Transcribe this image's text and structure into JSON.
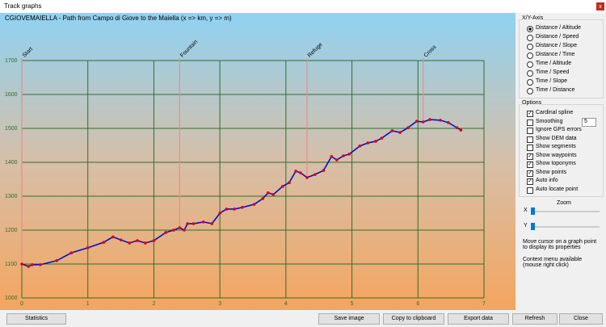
{
  "window": {
    "title": "Track graphs",
    "close": "x"
  },
  "chart": {
    "type": "line",
    "title": "CGIOVEMAIELLA - Path from Campo di Giove to the Maiella (x => km, y => m)",
    "x": [
      0,
      0.1,
      0.16,
      0.28,
      0.53,
      0.75,
      1.0,
      1.24,
      1.38,
      1.5,
      1.63,
      1.75,
      1.87,
      2.0,
      2.18,
      2.3,
      2.39,
      2.46,
      2.51,
      2.6,
      2.75,
      2.88,
      3.0,
      3.1,
      3.22,
      3.34,
      3.52,
      3.65,
      3.73,
      3.81,
      3.95,
      4.05,
      4.15,
      4.22,
      4.32,
      4.44,
      4.57,
      4.69,
      4.77,
      4.87,
      4.96,
      5.12,
      5.24,
      5.36,
      5.45,
      5.61,
      5.73,
      5.85,
      5.98,
      6.08,
      6.18,
      6.34,
      6.46,
      6.59,
      6.65
    ],
    "values": [
      1100,
      1093,
      1098,
      1098,
      1110,
      1133,
      1148,
      1164,
      1180,
      1171,
      1162,
      1169,
      1162,
      1169,
      1193,
      1200,
      1207,
      1200,
      1219,
      1219,
      1224,
      1219,
      1250,
      1262,
      1262,
      1267,
      1276,
      1293,
      1310,
      1305,
      1329,
      1340,
      1374,
      1369,
      1355,
      1364,
      1376,
      1417,
      1407,
      1419,
      1424,
      1448,
      1457,
      1462,
      1471,
      1493,
      1488,
      1502,
      1521,
      1519,
      1526,
      1524,
      1517,
      1502,
      1495
    ],
    "color": "#0010d0",
    "point_color": "#e00010",
    "waypoint_color": "#f08a8a",
    "grid_color": "#2d6e2d",
    "waypoints": [
      {
        "name": "Start",
        "x": 0
      },
      {
        "name": "Fountain",
        "x": 2.39
      },
      {
        "name": "Refuge",
        "x": 4.32
      },
      {
        "name": "Cross",
        "x": 6.08
      }
    ],
    "xlim": [
      0,
      7
    ],
    "ylim": [
      1000,
      1700
    ],
    "xticks": [
      0,
      1,
      2,
      3,
      4,
      5,
      6,
      7
    ],
    "yticks": [
      1000,
      1100,
      1200,
      1300,
      1400,
      1500,
      1600,
      1700
    ],
    "grid": true
  },
  "panel": {
    "axis_title": "X/Y-Axis",
    "axis_options": [
      "Distance / Altitude",
      "Distance / Speed",
      "Distance / Slope",
      "Distance / Time",
      "Time / Altitude",
      "Time / Speed",
      "Time / Slope",
      "Time / Distance"
    ],
    "axis_selected": 0,
    "options_title": "Options",
    "options": [
      {
        "label": "Cardinal spline",
        "checked": true
      },
      {
        "label": "Smoothing",
        "checked": false
      },
      {
        "label": "Ignore GPS errors",
        "checked": false
      },
      {
        "label": "Show DEM data",
        "checked": false
      },
      {
        "label": "Show segments",
        "checked": false
      },
      {
        "label": "Show waypoints",
        "checked": true
      },
      {
        "label": "Show toponyms",
        "checked": true
      },
      {
        "label": "Show points",
        "checked": true
      },
      {
        "label": "Auto info",
        "checked": true
      },
      {
        "label": "Auto locate point",
        "checked": false
      }
    ],
    "smoothing": 5,
    "zoom_title": "Zoom",
    "zoom_x": "X",
    "zoom_y": "Y",
    "info1": "Move cursor on a graph point to display its properties",
    "info2": "Context menu available (mouse right click)"
  },
  "buttons": [
    "Statistics",
    "Save image",
    "Copy to clipboard",
    "Export data",
    "Refresh",
    "Close"
  ]
}
